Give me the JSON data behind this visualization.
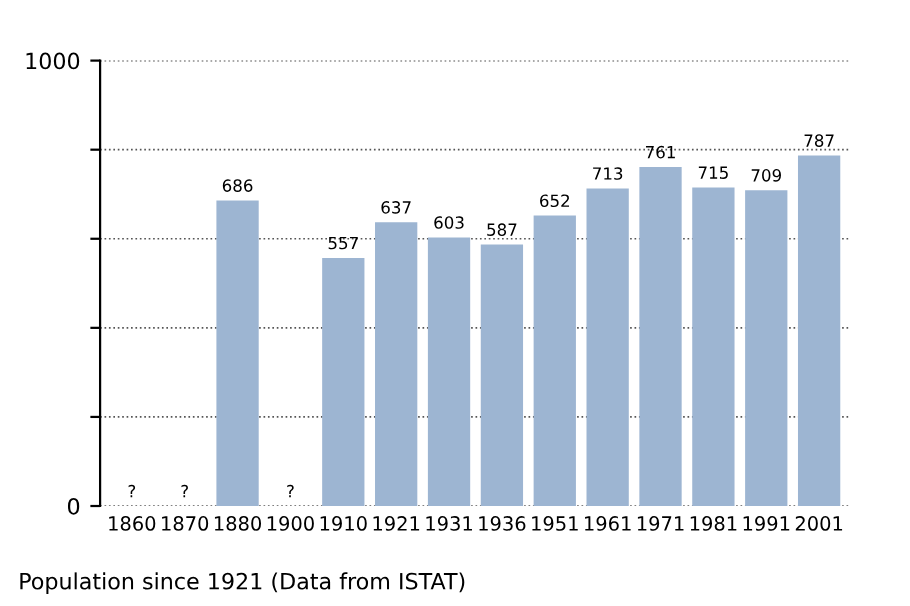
{
  "chart_data": {
    "type": "bar",
    "categories": [
      "1860",
      "1870",
      "1880",
      "1900",
      "1910",
      "1921",
      "1931",
      "1936",
      "1951",
      "1961",
      "1971",
      "1981",
      "1991",
      "2001"
    ],
    "values": [
      null,
      null,
      686,
      null,
      557,
      637,
      603,
      587,
      652,
      713,
      761,
      715,
      709,
      787
    ],
    "value_labels": [
      "?",
      "?",
      "686",
      "?",
      "557",
      "637",
      "603",
      "587",
      "652",
      "713",
      "761",
      "715",
      "709",
      "787"
    ],
    "color": "#9db5d2",
    "ylim": [
      0,
      1000
    ],
    "yticks": [
      0,
      {
        "value": 200,
        "label": null
      },
      {
        "value": 400,
        "label": null
      },
      {
        "value": 600,
        "label": null
      },
      {
        "value": 800,
        "label": null
      },
      1000
    ],
    "grid": "y",
    "line_style": "dotted",
    "annotations": [
      "Population since 1921 (Data from ISTAT)"
    ]
  }
}
